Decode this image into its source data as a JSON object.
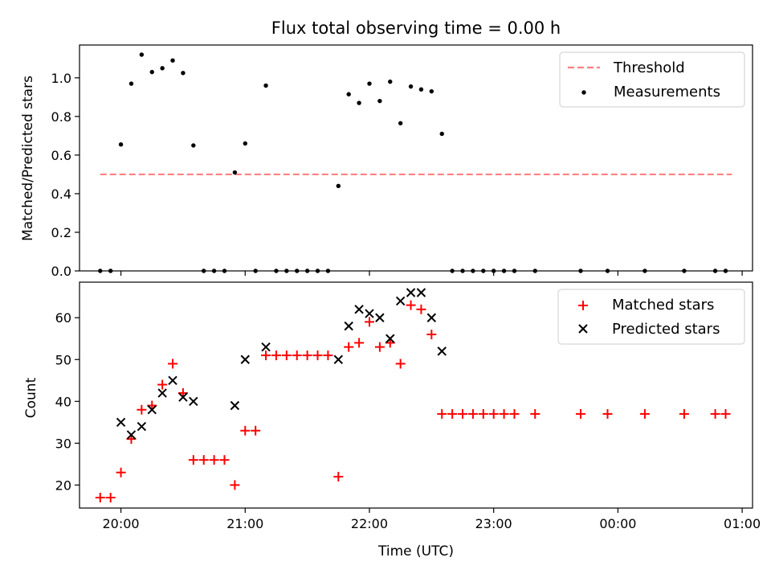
{
  "title": "Flux total observing time = 0.00 h",
  "xlabel": "Time (UTC)",
  "x_ticks": [
    "20:00",
    "21:00",
    "22:00",
    "23:00",
    "00:00",
    "01:00"
  ],
  "chart_data": [
    {
      "type": "scatter",
      "ylabel": "Matched/Predicted stars",
      "ylim": [
        0,
        1.17
      ],
      "y_ticks": [
        "0.0",
        "0.2",
        "0.4",
        "0.6",
        "0.8",
        "1.0"
      ],
      "legend_position": "top-right",
      "series": [
        {
          "name": "Threshold",
          "style": "dashed-line",
          "color": "#ff8080",
          "x": [
            "19:50",
            "24:55"
          ],
          "y": [
            0.5,
            0.5
          ]
        },
        {
          "name": "Measurements",
          "style": "dot",
          "color": "#000000",
          "x": [
            "19:50",
            "19:55",
            "20:00",
            "20:05",
            "20:10",
            "20:15",
            "20:20",
            "20:25",
            "20:30",
            "20:35",
            "20:40",
            "20:45",
            "20:50",
            "20:55",
            "21:00",
            "21:05",
            "21:10",
            "21:15",
            "21:20",
            "21:25",
            "21:30",
            "21:35",
            "21:40",
            "21:45",
            "21:50",
            "21:55",
            "22:00",
            "22:05",
            "22:10",
            "22:15",
            "22:20",
            "22:25",
            "22:30",
            "22:35",
            "22:40",
            "22:45",
            "22:50",
            "22:55",
            "23:00",
            "23:05",
            "23:10",
            "23:20",
            "23:42",
            "23:55",
            "24:13",
            "24:32",
            "24:47",
            "24:52"
          ],
          "y": [
            0,
            0,
            0.655,
            0.97,
            1.12,
            1.03,
            1.05,
            1.09,
            1.025,
            0.65,
            0,
            0,
            0,
            0.51,
            0.66,
            0,
            0.96,
            0,
            0,
            0,
            0,
            0,
            0,
            0.44,
            0.915,
            0.87,
            0.97,
            0.88,
            0.98,
            0.765,
            0.955,
            0.94,
            0.93,
            0.71,
            0,
            0,
            0,
            0,
            0,
            0,
            0,
            0,
            0,
            0,
            0,
            0,
            0,
            0
          ]
        }
      ]
    },
    {
      "type": "scatter",
      "ylabel": "Count",
      "ylim": [
        14.5,
        68.5
      ],
      "y_ticks": [
        "20",
        "30",
        "40",
        "50",
        "60"
      ],
      "legend_position": "top-right",
      "series": [
        {
          "name": "Matched stars",
          "marker": "plus",
          "color": "#ff0000",
          "x": [
            "19:50",
            "19:55",
            "20:00",
            "20:05",
            "20:10",
            "20:15",
            "20:20",
            "20:25",
            "20:30",
            "20:35",
            "20:40",
            "20:45",
            "20:50",
            "20:55",
            "21:00",
            "21:05",
            "21:10",
            "21:15",
            "21:20",
            "21:25",
            "21:30",
            "21:35",
            "21:40",
            "21:45",
            "21:50",
            "21:55",
            "22:00",
            "22:05",
            "22:10",
            "22:15",
            "22:20",
            "22:25",
            "22:30",
            "22:35",
            "22:40",
            "22:45",
            "22:50",
            "22:55",
            "23:00",
            "23:05",
            "23:10",
            "23:20",
            "23:42",
            "23:55",
            "24:13",
            "24:32",
            "24:47",
            "24:52"
          ],
          "y": [
            17,
            17,
            23,
            31,
            38,
            39,
            44,
            49,
            42,
            26,
            26,
            26,
            26,
            20,
            33,
            33,
            51,
            51,
            51,
            51,
            51,
            51,
            51,
            22,
            53,
            54,
            59,
            53,
            54,
            49,
            63,
            62,
            56,
            37,
            37,
            37,
            37,
            37,
            37,
            37,
            37,
            37,
            37,
            37,
            37,
            37,
            37,
            37
          ]
        },
        {
          "name": "Predicted stars",
          "marker": "x",
          "color": "#000000",
          "x": [
            "20:00",
            "20:05",
            "20:10",
            "20:15",
            "20:20",
            "20:25",
            "20:30",
            "20:35",
            "20:55",
            "21:00",
            "21:10",
            "21:45",
            "21:50",
            "21:55",
            "22:00",
            "22:05",
            "22:10",
            "22:15",
            "22:20",
            "22:25",
            "22:30",
            "22:35"
          ],
          "y": [
            35,
            32,
            34,
            38,
            42,
            45,
            41,
            40,
            39,
            50,
            53,
            50,
            58,
            62,
            61,
            60,
            55,
            64,
            66,
            66,
            60,
            52
          ]
        }
      ]
    }
  ]
}
